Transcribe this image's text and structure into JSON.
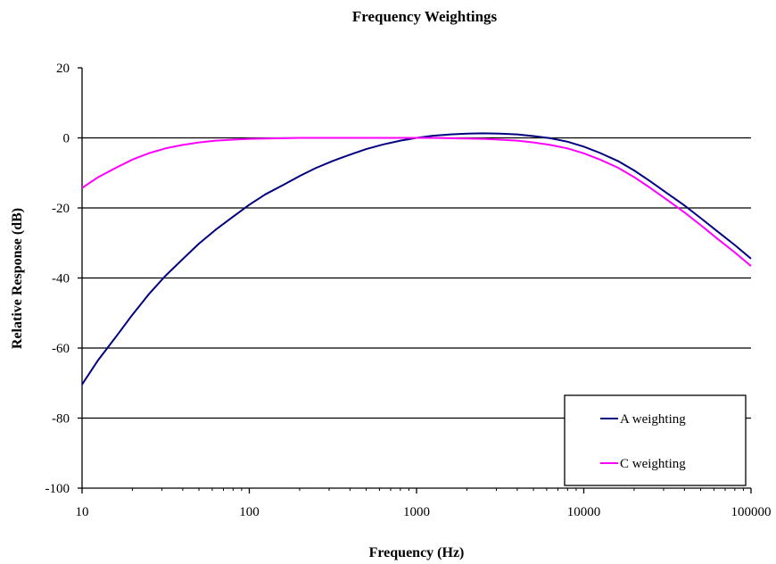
{
  "chart_data": {
    "type": "line",
    "title": "Frequency Weightings",
    "xlabel": "Frequency (Hz)",
    "ylabel": "Relative Response (dB)",
    "xscale": "log",
    "xlim": [
      10,
      100000
    ],
    "ylim": [
      -100,
      20
    ],
    "xticks": [
      10,
      100,
      1000,
      10000,
      100000
    ],
    "xtick_labels": [
      "10",
      "100",
      "1000",
      "10000",
      "100000"
    ],
    "yticks": [
      20,
      0,
      -20,
      -40,
      -60,
      -80,
      -100
    ],
    "ytick_labels": [
      "20",
      "0",
      "-20",
      "-40",
      "-60",
      "-80",
      "-100"
    ],
    "grid": "horizontal",
    "legend_position": "bottom-right",
    "x": [
      10,
      12.5,
      16,
      20,
      25,
      31.5,
      40,
      50,
      63,
      80,
      100,
      125,
      160,
      200,
      250,
      315,
      400,
      500,
      630,
      800,
      1000,
      1250,
      1600,
      2000,
      2500,
      3150,
      4000,
      5000,
      6300,
      8000,
      10000,
      12500,
      16000,
      20000,
      25000,
      31500,
      40000,
      50000,
      63000,
      80000,
      100000
    ],
    "series": [
      {
        "name": "A weighting",
        "color": "#000080",
        "values": [
          -70.4,
          -63.4,
          -56.7,
          -50.5,
          -44.7,
          -39.4,
          -34.6,
          -30.2,
          -26.2,
          -22.5,
          -19.1,
          -16.1,
          -13.4,
          -10.9,
          -8.6,
          -6.6,
          -4.8,
          -3.2,
          -1.9,
          -0.8,
          0.0,
          0.6,
          1.0,
          1.2,
          1.3,
          1.2,
          1.0,
          0.5,
          -0.1,
          -1.1,
          -2.5,
          -4.3,
          -6.6,
          -9.3,
          -12.4,
          -15.8,
          -19.3,
          -22.9,
          -26.7,
          -30.6,
          -34.5
        ]
      },
      {
        "name": "C weighting",
        "color": "#ff00ff",
        "values": [
          -14.3,
          -11.2,
          -8.5,
          -6.2,
          -4.4,
          -3.0,
          -2.0,
          -1.3,
          -0.8,
          -0.5,
          -0.3,
          -0.2,
          -0.1,
          0.0,
          0.0,
          0.0,
          0.0,
          0.0,
          0.0,
          0.0,
          0.0,
          0.0,
          -0.1,
          -0.2,
          -0.3,
          -0.5,
          -0.8,
          -1.3,
          -2.0,
          -3.0,
          -4.4,
          -6.2,
          -8.5,
          -11.2,
          -14.3,
          -17.7,
          -21.3,
          -24.9,
          -28.8,
          -32.7,
          -36.6
        ]
      }
    ]
  }
}
